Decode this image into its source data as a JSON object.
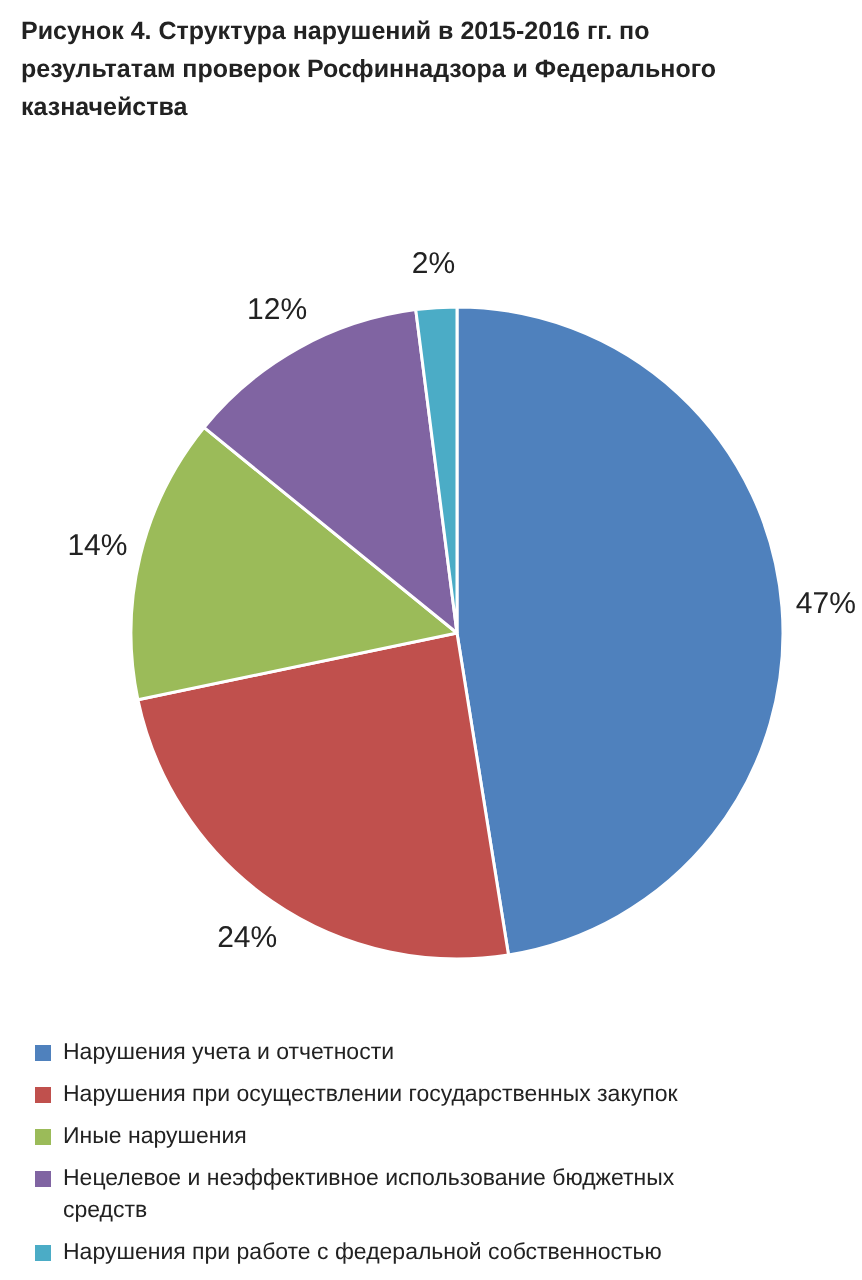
{
  "chart_data": {
    "type": "pie",
    "title": "Рисунок 4. Структура нарушений в 2015-2016 гг. по результатам проверок Росфиннадзора и Федерального казначейства",
    "categories": [
      "Нарушения учета и отчетности",
      "Нарушения при осуществлении государственных закупок",
      "Иные нарушения",
      "Нецелевое и неэффективное использование бюджетных средств",
      "Нарушения при работе с федеральной собственностью"
    ],
    "values": [
      47,
      24,
      14,
      12,
      2
    ],
    "colors": [
      "#4f81bd",
      "#c0504d",
      "#9bbb59",
      "#8064a2",
      "#4bacc6"
    ],
    "value_labels": [
      "47%",
      "24%",
      "14%",
      "12%",
      "2%"
    ],
    "legend": "bottom"
  }
}
